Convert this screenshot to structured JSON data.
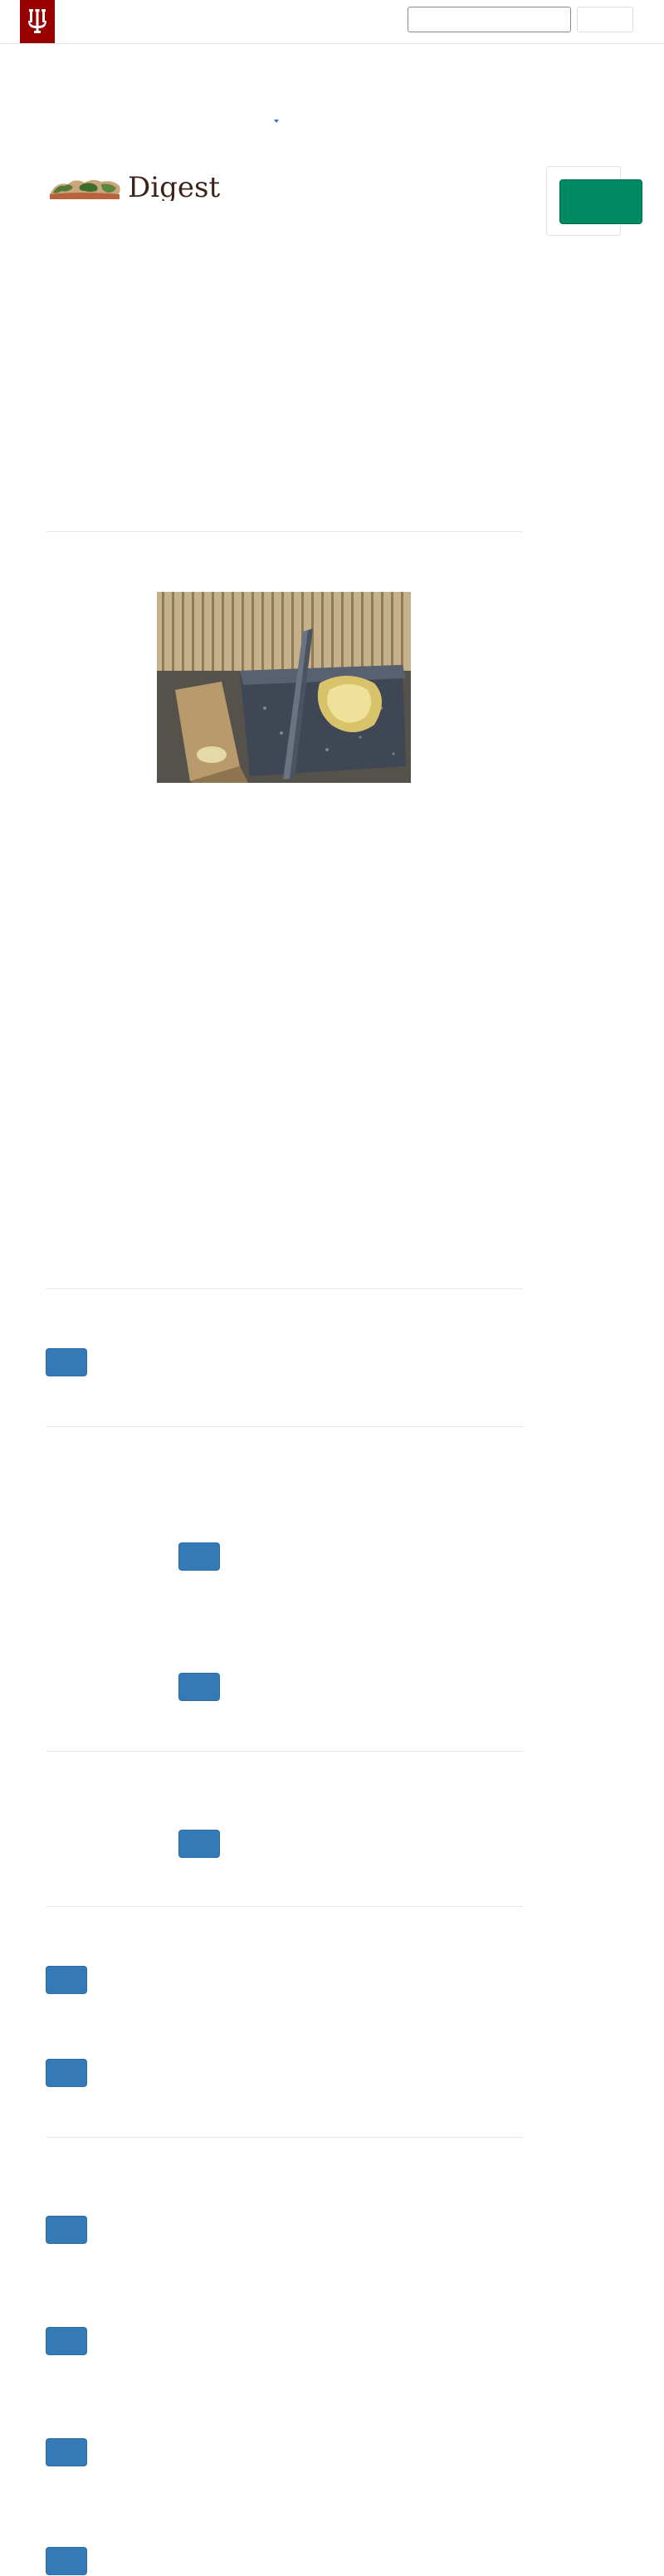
{
  "header": {
    "logo_icon": "iu-trident-icon",
    "brand_color": "#990000",
    "search": {
      "placeholder": "",
      "value": "",
      "button_label": ""
    }
  },
  "masthead": {
    "wordmark": "Digest",
    "illustration_icon": "world-map-icon"
  },
  "sidebar": {
    "action_label": "",
    "action_color": "#008a63"
  },
  "article": {
    "image_alt": "",
    "image_icon": "stone-grinding-slab-photo"
  },
  "buttons": {
    "color": "#337ab7",
    "labels": [
      "",
      "",
      "",
      "",
      "",
      "",
      "",
      "",
      "",
      "",
      ""
    ]
  }
}
